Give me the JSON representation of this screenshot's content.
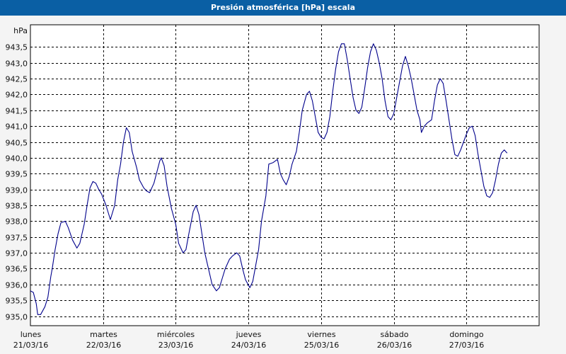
{
  "window": {
    "title": "Presión atmosférica [hPa] escala"
  },
  "colors": {
    "titlebar": "#0a5fa4",
    "line": "#00008b",
    "grid": "#000000",
    "plot_bg": "#ffffff",
    "frame_bg": "#f4f4f4"
  },
  "chart_data": {
    "type": "line",
    "title": "Presión atmosférica [hPa] escala",
    "ylabel": "hPa",
    "xlabel": "",
    "ylim": [
      934.7,
      944.2
    ],
    "grid": true,
    "yticks": [
      {
        "v": 935.0,
        "label": "935,0"
      },
      {
        "v": 935.5,
        "label": "935,5"
      },
      {
        "v": 936.0,
        "label": "936,0"
      },
      {
        "v": 936.5,
        "label": "936,5"
      },
      {
        "v": 937.0,
        "label": "937,0"
      },
      {
        "v": 937.5,
        "label": "937,5"
      },
      {
        "v": 938.0,
        "label": "938,0"
      },
      {
        "v": 938.5,
        "label": "938,5"
      },
      {
        "v": 939.0,
        "label": "939,0"
      },
      {
        "v": 939.5,
        "label": "939,5"
      },
      {
        "v": 940.0,
        "label": "940,0"
      },
      {
        "v": 940.5,
        "label": "940,5"
      },
      {
        "v": 941.0,
        "label": "941,0"
      },
      {
        "v": 941.5,
        "label": "941,5"
      },
      {
        "v": 942.0,
        "label": "942,0"
      },
      {
        "v": 942.5,
        "label": "942,5"
      },
      {
        "v": 943.0,
        "label": "943,0"
      },
      {
        "v": 943.5,
        "label": "943,5"
      }
    ],
    "days": [
      {
        "day": "lunes",
        "date": "21/03/16"
      },
      {
        "day": "martes",
        "date": "22/03/16"
      },
      {
        "day": "miércoles",
        "date": "23/03/16"
      },
      {
        "day": "jueves",
        "date": "24/03/16"
      },
      {
        "day": "viernes",
        "date": "25/03/16"
      },
      {
        "day": "sábado",
        "date": "26/03/16"
      },
      {
        "day": "domingo",
        "date": "27/03/16"
      }
    ],
    "xlim_days": [
      0,
      7
    ],
    "series": [
      {
        "points": [
          [
            0.0,
            935.8
          ],
          [
            0.04,
            935.75
          ],
          [
            0.08,
            935.4
          ],
          [
            0.1,
            935.05
          ],
          [
            0.14,
            935.05
          ],
          [
            0.2,
            935.3
          ],
          [
            0.24,
            935.6
          ],
          [
            0.28,
            936.25
          ],
          [
            0.3,
            936.5
          ],
          [
            0.34,
            937.1
          ],
          [
            0.38,
            937.6
          ],
          [
            0.42,
            937.95
          ],
          [
            0.48,
            938.0
          ],
          [
            0.52,
            937.8
          ],
          [
            0.58,
            937.4
          ],
          [
            0.64,
            937.15
          ],
          [
            0.68,
            937.3
          ],
          [
            0.74,
            937.9
          ],
          [
            0.78,
            938.5
          ],
          [
            0.82,
            939.05
          ],
          [
            0.86,
            939.25
          ],
          [
            0.9,
            939.2
          ],
          [
            0.94,
            939.0
          ],
          [
            0.98,
            938.85
          ],
          [
            1.04,
            938.5
          ],
          [
            1.1,
            938.05
          ],
          [
            1.16,
            938.5
          ],
          [
            1.2,
            939.3
          ],
          [
            1.24,
            939.8
          ],
          [
            1.28,
            940.5
          ],
          [
            1.32,
            940.95
          ],
          [
            1.36,
            940.8
          ],
          [
            1.4,
            940.2
          ],
          [
            1.46,
            939.7
          ],
          [
            1.5,
            939.3
          ],
          [
            1.56,
            939.05
          ],
          [
            1.6,
            938.95
          ],
          [
            1.64,
            938.9
          ],
          [
            1.7,
            939.2
          ],
          [
            1.74,
            939.55
          ],
          [
            1.78,
            939.9
          ],
          [
            1.8,
            940.0
          ],
          [
            1.84,
            939.75
          ],
          [
            1.88,
            939.1
          ],
          [
            1.94,
            938.4
          ],
          [
            2.0,
            937.9
          ],
          [
            2.04,
            937.3
          ],
          [
            2.1,
            937.0
          ],
          [
            2.14,
            937.1
          ],
          [
            2.18,
            937.6
          ],
          [
            2.24,
            938.3
          ],
          [
            2.28,
            938.5
          ],
          [
            2.32,
            938.2
          ],
          [
            2.36,
            937.6
          ],
          [
            2.4,
            937.0
          ],
          [
            2.44,
            936.6
          ],
          [
            2.5,
            936.0
          ],
          [
            2.56,
            935.8
          ],
          [
            2.6,
            935.9
          ],
          [
            2.64,
            936.2
          ],
          [
            2.68,
            936.5
          ],
          [
            2.74,
            936.8
          ],
          [
            2.78,
            936.9
          ],
          [
            2.84,
            937.0
          ],
          [
            2.88,
            936.9
          ],
          [
            2.92,
            936.5
          ],
          [
            2.96,
            936.15
          ],
          [
            3.02,
            935.9
          ],
          [
            3.06,
            936.1
          ],
          [
            3.1,
            936.6
          ],
          [
            3.14,
            937.1
          ],
          [
            3.18,
            938.0
          ],
          [
            3.24,
            938.8
          ],
          [
            3.28,
            939.8
          ],
          [
            3.34,
            939.85
          ],
          [
            3.4,
            939.95
          ],
          [
            3.44,
            939.5
          ],
          [
            3.48,
            939.3
          ],
          [
            3.52,
            939.15
          ],
          [
            3.56,
            939.4
          ],
          [
            3.6,
            939.8
          ],
          [
            3.66,
            940.2
          ],
          [
            3.7,
            940.8
          ],
          [
            3.74,
            941.5
          ],
          [
            3.8,
            942.0
          ],
          [
            3.84,
            942.1
          ],
          [
            3.88,
            941.8
          ],
          [
            3.92,
            941.3
          ],
          [
            3.96,
            940.8
          ],
          [
            4.0,
            940.65
          ],
          [
            4.04,
            940.6
          ],
          [
            4.08,
            940.8
          ],
          [
            4.12,
            941.3
          ],
          [
            4.16,
            942.1
          ],
          [
            4.2,
            942.8
          ],
          [
            4.24,
            943.35
          ],
          [
            4.28,
            943.6
          ],
          [
            4.32,
            943.6
          ],
          [
            4.36,
            943.1
          ],
          [
            4.4,
            942.5
          ],
          [
            4.44,
            941.9
          ],
          [
            4.48,
            941.5
          ],
          [
            4.52,
            941.4
          ],
          [
            4.56,
            941.6
          ],
          [
            4.6,
            942.2
          ],
          [
            4.64,
            942.85
          ],
          [
            4.68,
            943.35
          ],
          [
            4.72,
            943.6
          ],
          [
            4.76,
            943.4
          ],
          [
            4.8,
            943.0
          ],
          [
            4.84,
            942.5
          ],
          [
            4.88,
            941.8
          ],
          [
            4.92,
            941.3
          ],
          [
            4.96,
            941.2
          ],
          [
            5.0,
            941.4
          ],
          [
            5.04,
            941.9
          ],
          [
            5.08,
            942.4
          ],
          [
            5.12,
            942.9
          ],
          [
            5.16,
            943.2
          ],
          [
            5.2,
            942.9
          ],
          [
            5.24,
            942.5
          ],
          [
            5.28,
            942.0
          ],
          [
            5.32,
            941.5
          ],
          [
            5.36,
            941.2
          ],
          [
            5.38,
            940.8
          ],
          [
            5.42,
            941.0
          ],
          [
            5.46,
            941.1
          ],
          [
            5.52,
            941.2
          ],
          [
            5.56,
            941.8
          ],
          [
            5.6,
            942.3
          ],
          [
            5.64,
            942.5
          ],
          [
            5.68,
            942.35
          ],
          [
            5.72,
            941.8
          ],
          [
            5.76,
            941.2
          ],
          [
            5.8,
            940.6
          ],
          [
            5.84,
            940.1
          ],
          [
            5.88,
            940.05
          ],
          [
            5.92,
            940.25
          ],
          [
            5.96,
            940.5
          ],
          [
            6.0,
            940.75
          ],
          [
            6.04,
            940.95
          ],
          [
            6.08,
            941.0
          ],
          [
            6.12,
            940.7
          ],
          [
            6.16,
            940.1
          ],
          [
            6.2,
            939.6
          ],
          [
            6.24,
            939.1
          ],
          [
            6.28,
            938.8
          ],
          [
            6.32,
            938.75
          ],
          [
            6.36,
            938.9
          ],
          [
            6.4,
            939.3
          ],
          [
            6.44,
            939.8
          ],
          [
            6.48,
            940.15
          ],
          [
            6.52,
            940.25
          ],
          [
            6.56,
            940.15
          ]
        ]
      }
    ]
  }
}
